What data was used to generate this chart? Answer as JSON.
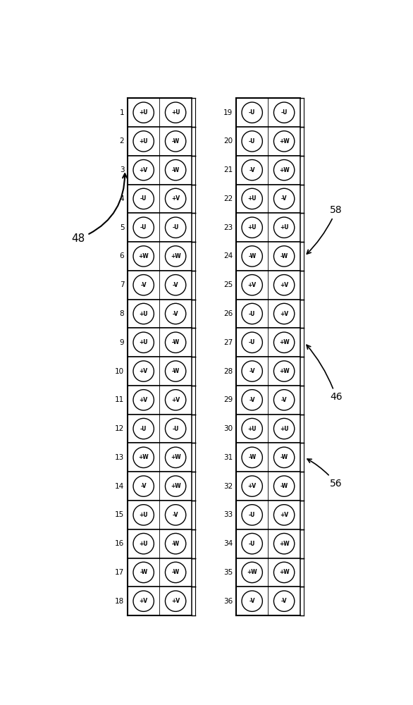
{
  "top_slots": [
    {
      "num": 1,
      "left": "+U",
      "right": "+U"
    },
    {
      "num": 2,
      "left": "+U",
      "right": "-W"
    },
    {
      "num": 3,
      "left": "+V",
      "right": "-W"
    },
    {
      "num": 4,
      "left": "-U",
      "right": "+V"
    },
    {
      "num": 5,
      "left": "-U",
      "right": "-U"
    },
    {
      "num": 6,
      "left": "+W",
      "right": "+W"
    },
    {
      "num": 7,
      "left": "-V",
      "right": "-V"
    },
    {
      "num": 8,
      "left": "+U",
      "right": "-V"
    },
    {
      "num": 9,
      "left": "+U",
      "right": "-W"
    },
    {
      "num": 10,
      "left": "+V",
      "right": "-W"
    },
    {
      "num": 11,
      "left": "+V",
      "right": "+V"
    },
    {
      "num": 12,
      "left": "-U",
      "right": "-U"
    },
    {
      "num": 13,
      "left": "+W",
      "right": "+W"
    },
    {
      "num": 14,
      "left": "-V",
      "right": "+W"
    },
    {
      "num": 15,
      "left": "+U",
      "right": "-V"
    },
    {
      "num": 16,
      "left": "+U",
      "right": "-W"
    },
    {
      "num": 17,
      "left": "-W",
      "right": "-W"
    },
    {
      "num": 18,
      "left": "+V",
      "right": "+V"
    }
  ],
  "bot_slots": [
    {
      "num": 19,
      "left": "-U",
      "right": "-U"
    },
    {
      "num": 20,
      "left": "-U",
      "right": "+W"
    },
    {
      "num": 21,
      "left": "-V",
      "right": "+W"
    },
    {
      "num": 22,
      "left": "+U",
      "right": "-V"
    },
    {
      "num": 23,
      "left": "+U",
      "right": "+U"
    },
    {
      "num": 24,
      "left": "-W",
      "right": "-W"
    },
    {
      "num": 25,
      "left": "+V",
      "right": "+V"
    },
    {
      "num": 26,
      "left": "-U",
      "right": "+V"
    },
    {
      "num": 27,
      "left": "-U",
      "right": "+W"
    },
    {
      "num": 28,
      "left": "-V",
      "right": "+W"
    },
    {
      "num": 29,
      "left": "-V",
      "right": "-V"
    },
    {
      "num": 30,
      "left": "+U",
      "right": "+U"
    },
    {
      "num": 31,
      "left": "-W",
      "right": "-W"
    },
    {
      "num": 32,
      "left": "+V",
      "right": "-W"
    },
    {
      "num": 33,
      "left": "-U",
      "right": "+V"
    },
    {
      "num": 34,
      "left": "-U",
      "right": "+W"
    },
    {
      "num": 35,
      "left": "+W",
      "right": "+W"
    },
    {
      "num": 36,
      "left": "-V",
      "right": "-V"
    }
  ],
  "label_48": "48",
  "label_46": "46",
  "label_56": "56",
  "label_58": "58",
  "bg_color": "#ffffff"
}
